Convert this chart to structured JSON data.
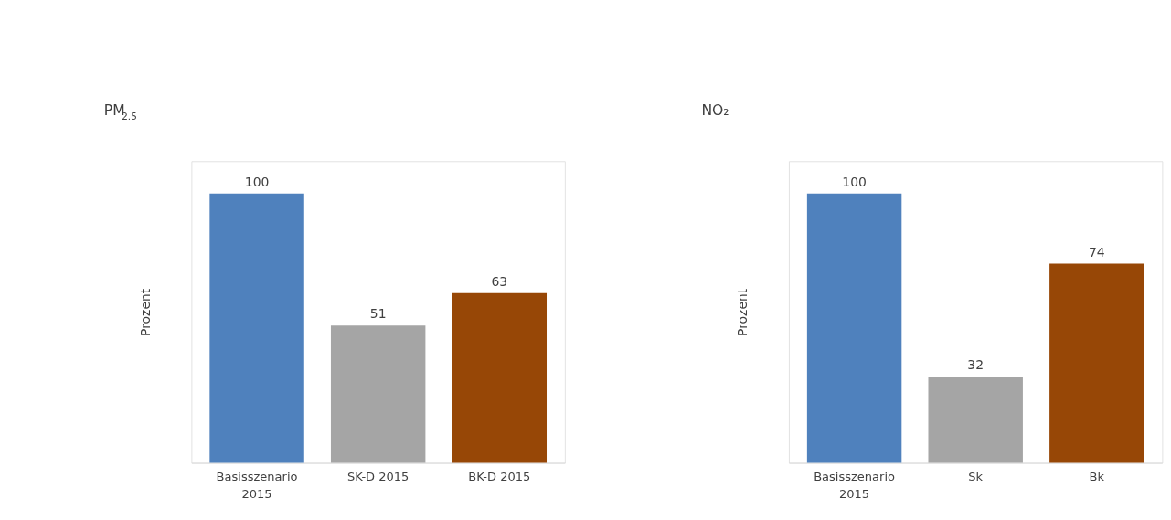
{
  "chart_data": [
    {
      "type": "bar",
      "title": "PM$_{2.5}$",
      "ylabel": "Prozent",
      "categories": [
        "Basisszenario 2015",
        "SK-D 2015",
        "BK-D 2015"
      ],
      "values": [
        100,
        51,
        63
      ],
      "colors": [
        "#4f81bd",
        "#a5a5a5",
        "#974706"
      ],
      "data_labels": true,
      "tick_labels": "x",
      "grid": false
    },
    {
      "type": "bar",
      "title": "NO₂",
      "ylabel": "Prozent",
      "categories": [
        "Basisszenario 2015",
        "Sk",
        "Bk"
      ],
      "values": [
        100,
        32,
        74
      ],
      "colors": [
        "#4f81bd",
        "#a5a5a5",
        "#974706"
      ],
      "data_labels": true,
      "tick_labels": "x",
      "grid": false
    }
  ]
}
